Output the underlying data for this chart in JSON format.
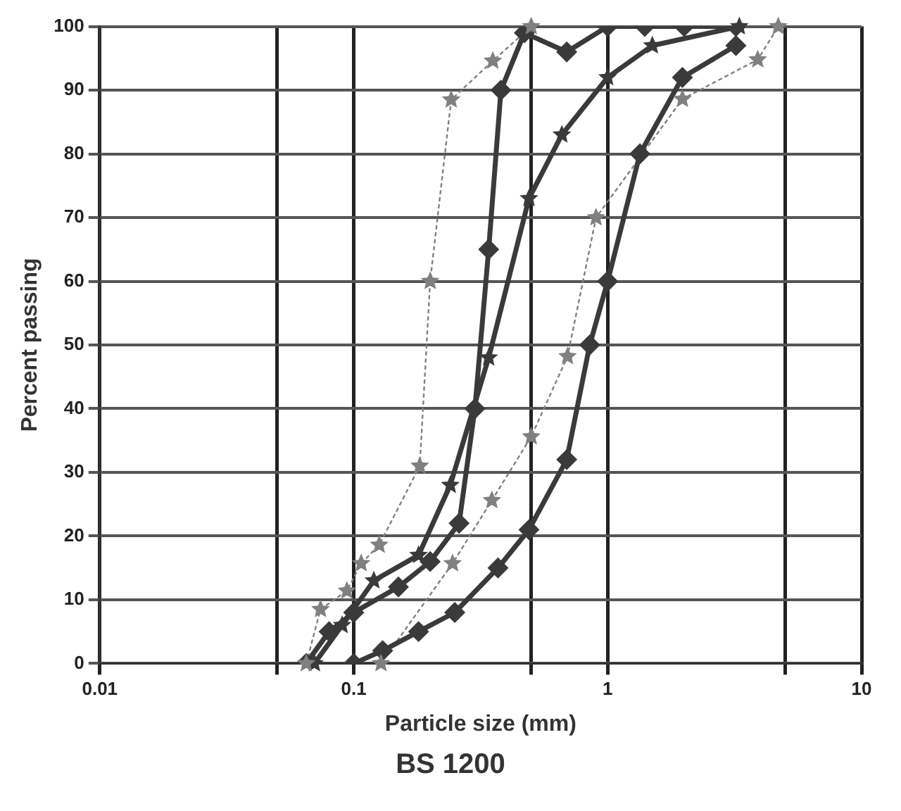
{
  "chart_data": {
    "type": "line",
    "xlabel": "Particle size (mm)",
    "ylabel": "Percent passing",
    "annotations": [
      "BS 1200"
    ],
    "log": "x",
    "grid": true,
    "legend": false,
    "xlim": [
      0.01,
      10
    ],
    "xticks": [
      0.01,
      {
        "value": 0.05,
        "label": null
      },
      0.1,
      {
        "value": 0.5,
        "label": null
      },
      1,
      {
        "value": 5,
        "label": null
      },
      10
    ],
    "ylim": [
      0,
      100
    ],
    "yticks": [
      0,
      10,
      20,
      30,
      40,
      50,
      60,
      70,
      80,
      90,
      100
    ],
    "series": [
      {
        "color": "#3a3a3a",
        "marker": "diamond",
        "line_style": "solid",
        "x": [
          0.065,
          0.08,
          0.1,
          0.15,
          0.2,
          0.26,
          0.3,
          0.34,
          0.38,
          0.47,
          0.69,
          1,
          1.4,
          2,
          3.2
        ],
        "values": [
          0,
          5,
          8,
          12,
          16,
          22,
          40,
          65,
          90,
          99,
          96,
          100,
          100,
          100,
          100
        ]
      },
      {
        "color": "#3a3a3a",
        "marker": "star",
        "line_style": "solid",
        "x": [
          0.07,
          0.09,
          0.12,
          0.18,
          0.24,
          0.34,
          0.49,
          0.66,
          1,
          1.5,
          3.3
        ],
        "values": [
          0,
          6,
          13,
          17,
          28,
          48,
          73,
          83,
          92,
          97,
          100
        ]
      },
      {
        "color": "#3a3a3a",
        "marker": "diamond",
        "line_style": "solid",
        "x": [
          0.1,
          0.13,
          0.18,
          0.25,
          0.37,
          0.49,
          0.69,
          0.85,
          1,
          1.34,
          1.97,
          3.2
        ],
        "values": [
          0,
          2,
          5,
          8,
          15,
          21,
          32,
          50,
          60,
          80,
          92,
          97
        ]
      },
      {
        "color": "#808080",
        "marker": "star",
        "line_style": "dotted",
        "x": [
          0.065,
          0.074,
          0.094,
          0.107,
          0.126,
          0.182,
          0.2,
          0.242,
          0.353,
          0.5
        ],
        "values": [
          0,
          8.5,
          11.4,
          15.7,
          18.6,
          31,
          60,
          88.5,
          94.6,
          100
        ]
      },
      {
        "color": "#808080",
        "marker": "star",
        "line_style": "dotted",
        "x": [
          0.128,
          0.245,
          0.35,
          0.5,
          0.695,
          0.9,
          1.97,
          3.9,
          4.7
        ],
        "values": [
          0,
          15.7,
          25.6,
          35.6,
          48.2,
          70,
          88.6,
          94.8,
          100
        ]
      }
    ]
  }
}
